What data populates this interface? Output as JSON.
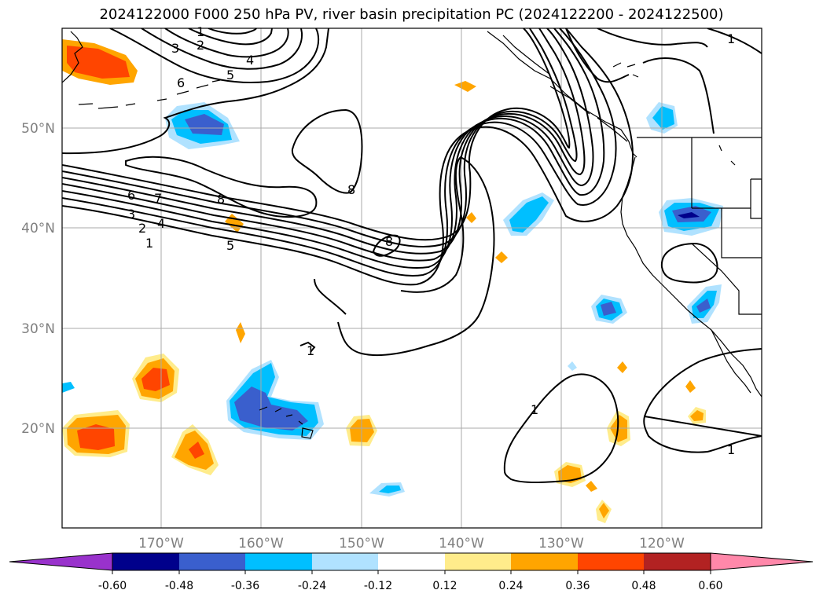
{
  "title": "2024122000 F000 250 hPa PV, river basin precipitation PC (2024122200 - 2024122500)",
  "map": {
    "projection": "PlateCarree",
    "lon_range": [
      -180,
      -110
    ],
    "lat_range": [
      10,
      60
    ],
    "lat_ticks": [
      {
        "value": 50,
        "label": "50°N"
      },
      {
        "value": 40,
        "label": "40°N"
      },
      {
        "value": 30,
        "label": "30°N"
      },
      {
        "value": 20,
        "label": "20°N"
      }
    ],
    "lon_ticks": [
      {
        "value": -170,
        "label": "170°W"
      },
      {
        "value": -160,
        "label": "160°W"
      },
      {
        "value": -150,
        "label": "150°W"
      },
      {
        "value": -140,
        "label": "140°W"
      },
      {
        "value": -130,
        "label": "130°W"
      },
      {
        "value": -120,
        "label": "120°W"
      }
    ],
    "gridlines": true,
    "pv_contour_labels": [
      "1",
      "2",
      "3",
      "4",
      "5",
      "6",
      "7",
      "8",
      "6",
      "3",
      "2",
      "1",
      "8",
      "8",
      "5",
      "4",
      "1",
      "1",
      "1",
      "1"
    ]
  },
  "colorbar": {
    "extend": "both",
    "tick_labels": [
      "-0.60",
      "-0.48",
      "-0.36",
      "-0.24",
      "-0.12",
      "0.12",
      "0.24",
      "0.36",
      "0.48",
      "0.60"
    ],
    "colors": [
      "#9932cc",
      "#00008b",
      "#3a5fcd",
      "#00bfff",
      "#b0e2ff",
      "#ffffff",
      "#ffec8b",
      "#ffa500",
      "#ff4500",
      "#b22222",
      "#ff88aa"
    ]
  }
}
